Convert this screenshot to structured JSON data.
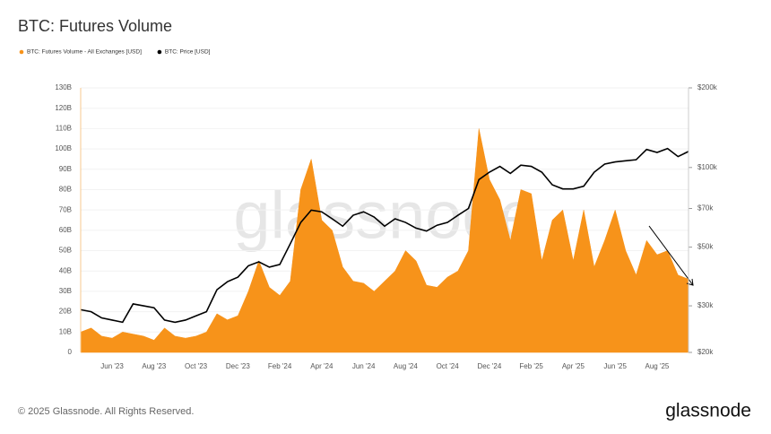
{
  "chart_data": {
    "type": "area-line",
    "title": "BTC: Futures Volume",
    "watermark": "glassnode",
    "footer": "© 2025 Glassnode. All Rights Reserved.",
    "brand": "glassnode",
    "categories": [
      null,
      null,
      null,
      "Jun '23",
      null,
      null,
      null,
      "Aug '23",
      null,
      null,
      null,
      "Oct '23",
      null,
      null,
      null,
      "Dec '23",
      null,
      null,
      null,
      "Feb '24",
      null,
      null,
      null,
      "Apr '24",
      null,
      null,
      null,
      "Jun '24",
      null,
      null,
      null,
      "Aug '24",
      null,
      null,
      null,
      "Oct '24",
      null,
      null,
      null,
      "Dec '24",
      null,
      null,
      null,
      "Feb '25",
      null,
      null,
      null,
      "Apr '25",
      null,
      null,
      null,
      "Jun '25",
      null,
      null,
      null,
      "Aug '25",
      null,
      null,
      null
    ],
    "series": [
      {
        "name": "BTC: Futures Volume - All Exchanges [USD]",
        "color": "#f7931a",
        "values": [
          10,
          12,
          8,
          7,
          10,
          9,
          8,
          6,
          12,
          8,
          7,
          8,
          10,
          19,
          16,
          18,
          30,
          45,
          32,
          28,
          35,
          80,
          95,
          65,
          60,
          42,
          35,
          34,
          30,
          35,
          40,
          50,
          45,
          33,
          32,
          37,
          40,
          50,
          110,
          85,
          75,
          55,
          80,
          78,
          45,
          65,
          70,
          45,
          70,
          42,
          55,
          70,
          50,
          38,
          55,
          48,
          50,
          38,
          36
        ]
      },
      {
        "name": "BTC: Price [USD]",
        "color": "#000000",
        "axis": "y2",
        "values": [
          29000,
          28500,
          27000,
          26500,
          26000,
          30500,
          30000,
          29500,
          26500,
          26000,
          26500,
          27500,
          28500,
          34500,
          37000,
          38500,
          42500,
          44000,
          42000,
          43000,
          51500,
          62000,
          69000,
          68000,
          64000,
          60000,
          66000,
          68000,
          65000,
          60000,
          64000,
          62000,
          59000,
          57500,
          60500,
          62000,
          66000,
          70000,
          90000,
          96000,
          101000,
          95000,
          102000,
          101000,
          96000,
          86000,
          83000,
          83000,
          85000,
          96000,
          103000,
          105000,
          106000,
          107000,
          117000,
          114000,
          118000,
          110000,
          115000
        ]
      }
    ],
    "ylim": [
      0,
      130
    ],
    "yticks": [
      0,
      {
        "value": 10,
        "label": "10B"
      },
      {
        "value": 20,
        "label": "20B"
      },
      {
        "value": 30,
        "label": "30B"
      },
      {
        "value": 40,
        "label": "40B"
      },
      {
        "value": 50,
        "label": "50B"
      },
      {
        "value": 60,
        "label": "60B"
      },
      {
        "value": 70,
        "label": "70B"
      },
      {
        "value": 80,
        "label": "80B"
      },
      {
        "value": 90,
        "label": "90B"
      },
      {
        "value": 100,
        "label": "100B"
      },
      {
        "value": 110,
        "label": "110B"
      },
      {
        "value": 120,
        "label": "120B"
      },
      {
        "value": 130,
        "label": "130B"
      }
    ],
    "y2lim": [
      20000,
      200000
    ],
    "y2log": true,
    "y2ticks": [
      {
        "value": 20000,
        "label": "$20k"
      },
      {
        "value": 30000,
        "label": "$30k"
      },
      {
        "value": 50000,
        "label": "$50k"
      },
      {
        "value": 70000,
        "label": "$70k"
      },
      {
        "value": 100000,
        "label": "$100k"
      },
      {
        "value": 200000,
        "label": "$200k"
      }
    ],
    "grid": true
  }
}
